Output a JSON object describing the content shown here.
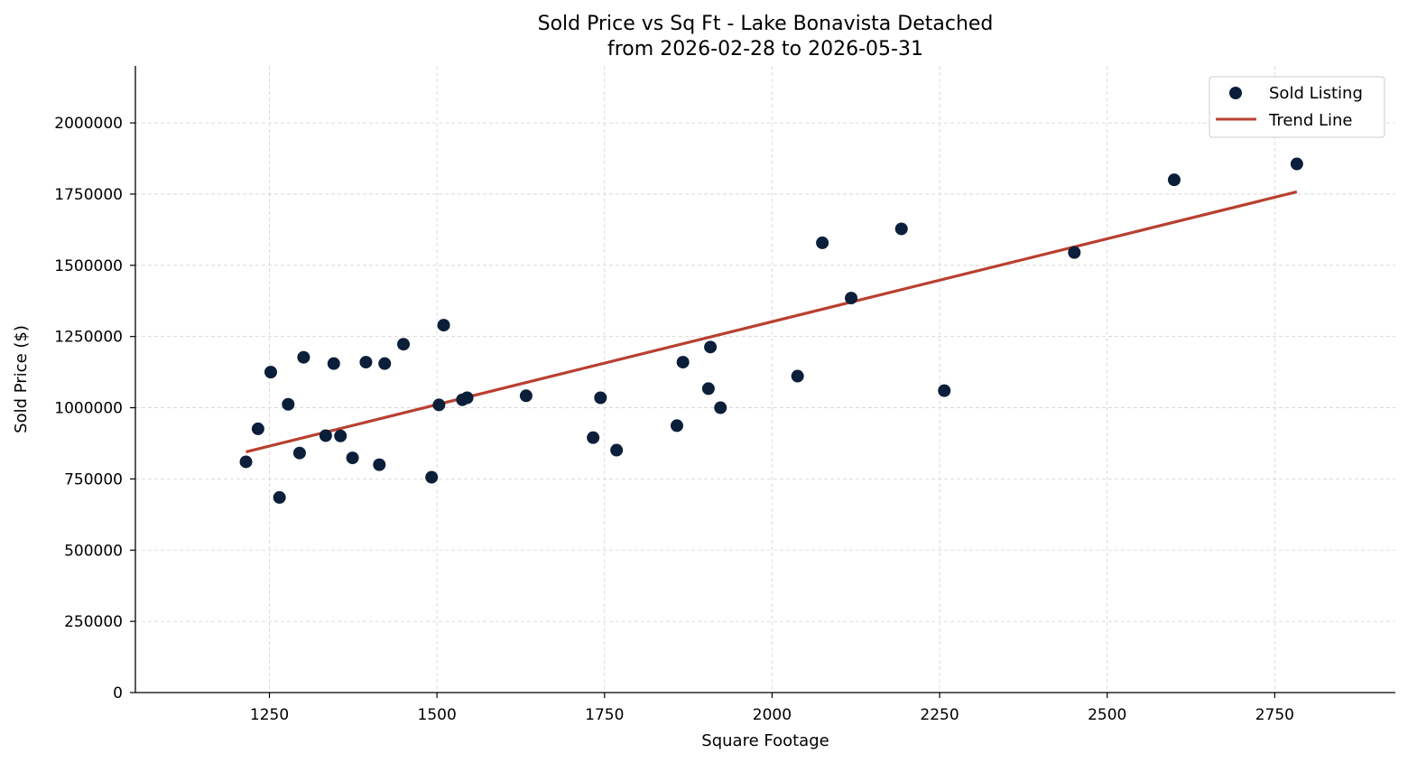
{
  "chart_data": {
    "type": "scatter",
    "title": "Sold Price vs Sq Ft - Lake Bonavista Detached",
    "subtitle": "from 2026-02-28 to 2026-05-31",
    "xlabel": "Square Footage",
    "ylabel": "Sold Price ($)",
    "xlim": [
      1050,
      2930
    ],
    "ylim": [
      0,
      2200000
    ],
    "x_ticks": [
      1250,
      1500,
      1750,
      2000,
      2250,
      2500,
      2750
    ],
    "y_ticks": [
      0,
      250000,
      500000,
      750000,
      1000000,
      1250000,
      1500000,
      1750000,
      2000000
    ],
    "grid": true,
    "legend_position": "top-right",
    "colors": {
      "points": "#0b1f3a",
      "trend": "#b84030",
      "grid": "#d3d3d3",
      "axis": "#000000"
    },
    "series": [
      {
        "name": "Sold Listing",
        "kind": "scatter",
        "points": [
          [
            1215,
            810000
          ],
          [
            1233,
            926000
          ],
          [
            1252,
            1125000
          ],
          [
            1265,
            685000
          ],
          [
            1278,
            1012000
          ],
          [
            1295,
            841000
          ],
          [
            1301,
            1177000
          ],
          [
            1334,
            902000
          ],
          [
            1346,
            1155000
          ],
          [
            1356,
            901000
          ],
          [
            1374,
            824000
          ],
          [
            1394,
            1160000
          ],
          [
            1414,
            800000
          ],
          [
            1422,
            1155000
          ],
          [
            1450,
            1223000
          ],
          [
            1492,
            756000
          ],
          [
            1503,
            1010000
          ],
          [
            1510,
            1290000
          ],
          [
            1538,
            1028000
          ],
          [
            1545,
            1035000
          ],
          [
            1633,
            1042000
          ],
          [
            1733,
            895000
          ],
          [
            1744,
            1035000
          ],
          [
            1768,
            851000
          ],
          [
            1858,
            937000
          ],
          [
            1867,
            1160000
          ],
          [
            1905,
            1067000
          ],
          [
            1908,
            1213000
          ],
          [
            1923,
            1000000
          ],
          [
            2038,
            1111000
          ],
          [
            2075,
            1579000
          ],
          [
            2118,
            1385000
          ],
          [
            2193,
            1628000
          ],
          [
            2257,
            1060000
          ],
          [
            2451,
            1545000
          ],
          [
            2600,
            1800000
          ],
          [
            2783,
            1856000
          ]
        ]
      },
      {
        "name": "Trend Line",
        "kind": "line",
        "points": [
          [
            1215,
            845000
          ],
          [
            2783,
            1758000
          ]
        ]
      }
    ]
  }
}
